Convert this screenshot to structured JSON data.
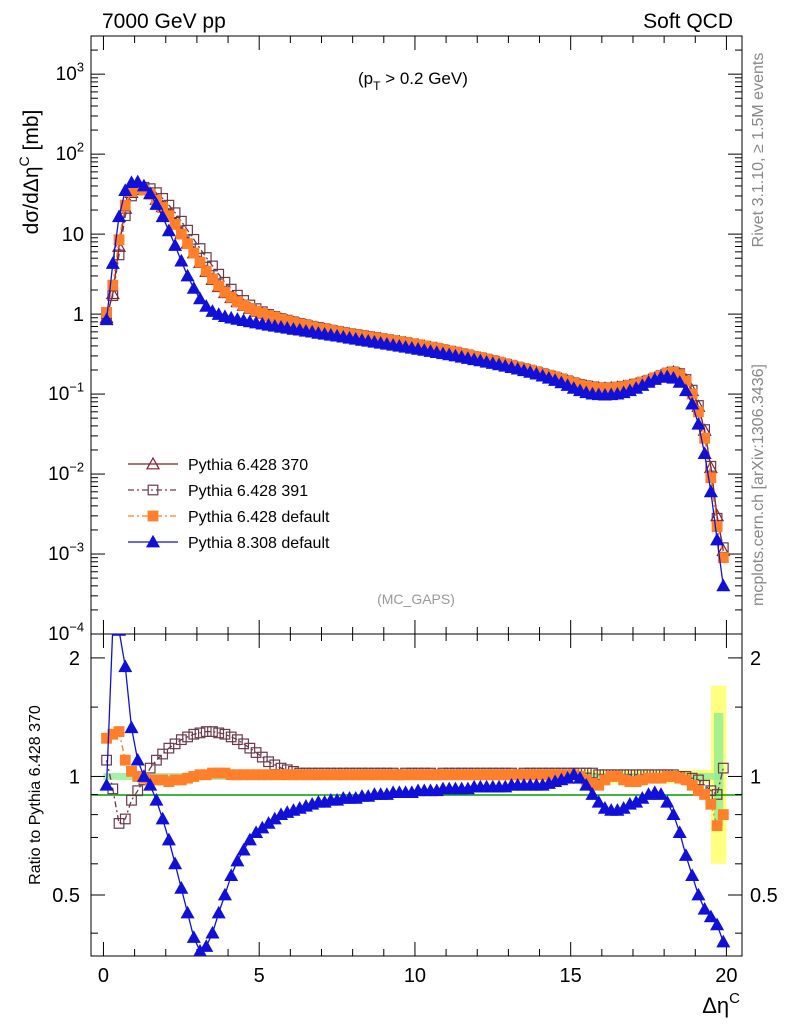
{
  "header": {
    "energy_label": "7000 GeV pp",
    "process_label": "Soft QCD",
    "cut_label": "(p_T > 0.2 GeV)",
    "analysis_label": "(MC_GAPS)"
  },
  "side_labels": {
    "rivet": "Rivet 3.1.10, ≥ 1.5M events",
    "mcplots": "mcplots.cern.ch [arXiv:1306.3436]"
  },
  "axes": {
    "main_ylabel": "dσ/dΔη^C [mb]",
    "ratio_ylabel": "Ratio to Pythia 6.428 370",
    "xlabel": "Δη^C",
    "xticks": [
      "0",
      "5",
      "10",
      "15",
      "20"
    ],
    "main_yticks": [
      "10^-4",
      "10^-3",
      "10^-2",
      "10^-1",
      "1",
      "10",
      "10^2",
      "10^3"
    ],
    "ratio_yticks": [
      "0.5",
      "1",
      "2"
    ]
  },
  "colors": {
    "pythia6_370": "#8b1a2b",
    "pythia6_391": "#6b3a4a",
    "pythia6_default": "#ff7f2a",
    "pythia8_default": "#1010d8",
    "band_green": "#90ee90",
    "band_yellow": "#ffff80"
  },
  "chart_data": [
    {
      "type": "line",
      "panel": "main",
      "title": "",
      "xlabel": "Δη^C",
      "ylabel": "dσ/dΔη^C [mb]",
      "xlim": [
        -0.4,
        20.5
      ],
      "ylim": [
        0.0001,
        3000
      ],
      "yscale": "log",
      "legend_position": "bottom-left",
      "x": [
        0.1,
        0.3,
        0.5,
        0.7,
        0.9,
        1.1,
        1.3,
        1.5,
        1.7,
        1.9,
        2.1,
        2.3,
        2.5,
        2.7,
        2.9,
        3.1,
        3.3,
        3.5,
        3.7,
        3.9,
        4.1,
        4.3,
        4.5,
        4.7,
        4.9,
        5.1,
        5.3,
        5.5,
        5.7,
        5.9,
        6.1,
        6.3,
        6.5,
        6.7,
        6.9,
        7.1,
        7.3,
        7.5,
        7.7,
        7.9,
        8.1,
        8.3,
        8.5,
        8.7,
        8.9,
        9.1,
        9.3,
        9.5,
        9.7,
        9.9,
        10.1,
        10.3,
        10.5,
        10.7,
        10.9,
        11.1,
        11.3,
        11.5,
        11.7,
        11.9,
        12.1,
        12.3,
        12.5,
        12.7,
        12.9,
        13.1,
        13.3,
        13.5,
        13.7,
        13.9,
        14.1,
        14.3,
        14.5,
        14.7,
        14.9,
        15.1,
        15.3,
        15.5,
        15.7,
        15.9,
        16.1,
        16.3,
        16.5,
        16.7,
        16.9,
        17.1,
        17.3,
        17.5,
        17.7,
        17.9,
        18.1,
        18.3,
        18.5,
        18.7,
        18.9,
        19.1,
        19.3,
        19.5,
        19.7,
        19.9
      ],
      "series": [
        {
          "name": "Pythia 6.428 370",
          "values": [
            0.9,
            1.8,
            7.0,
            21.0,
            33.0,
            37.0,
            36.0,
            32.0,
            27.0,
            22.0,
            17.5,
            13.5,
            10.2,
            7.7,
            5.8,
            4.4,
            3.4,
            2.7,
            2.2,
            1.85,
            1.6,
            1.42,
            1.28,
            1.17,
            1.08,
            1.01,
            0.95,
            0.9,
            0.86,
            0.82,
            0.78,
            0.75,
            0.72,
            0.69,
            0.66,
            0.64,
            0.62,
            0.6,
            0.58,
            0.56,
            0.545,
            0.53,
            0.515,
            0.5,
            0.49,
            0.475,
            0.46,
            0.45,
            0.435,
            0.42,
            0.41,
            0.395,
            0.38,
            0.37,
            0.355,
            0.34,
            0.33,
            0.315,
            0.305,
            0.29,
            0.28,
            0.27,
            0.258,
            0.247,
            0.235,
            0.225,
            0.215,
            0.205,
            0.196,
            0.187,
            0.178,
            0.17,
            0.162,
            0.153,
            0.145,
            0.137,
            0.13,
            0.125,
            0.121,
            0.119,
            0.118,
            0.119,
            0.121,
            0.124,
            0.128,
            0.133,
            0.14,
            0.148,
            0.158,
            0.17,
            0.182,
            0.188,
            0.178,
            0.15,
            0.11,
            0.07,
            0.035,
            0.012,
            0.003,
            0.0011
          ]
        },
        {
          "name": "Pythia 6.428 391",
          "values": [
            1.0,
            1.7,
            5.5,
            17.0,
            30.0,
            37.0,
            38.5,
            37.0,
            33.0,
            28.0,
            23.0,
            18.5,
            14.5,
            11.2,
            8.6,
            6.6,
            5.1,
            4.0,
            3.15,
            2.5,
            2.05,
            1.72,
            1.48,
            1.3,
            1.17,
            1.07,
            0.99,
            0.93,
            0.88,
            0.84,
            0.8,
            0.765,
            0.735,
            0.705,
            0.68,
            0.655,
            0.63,
            0.61,
            0.59,
            0.57,
            0.555,
            0.54,
            0.525,
            0.51,
            0.495,
            0.48,
            0.465,
            0.45,
            0.44,
            0.425,
            0.41,
            0.4,
            0.385,
            0.37,
            0.36,
            0.345,
            0.335,
            0.32,
            0.31,
            0.295,
            0.285,
            0.274,
            0.262,
            0.25,
            0.239,
            0.229,
            0.218,
            0.208,
            0.199,
            0.19,
            0.181,
            0.172,
            0.164,
            0.155,
            0.147,
            0.139,
            0.132,
            0.127,
            0.123,
            0.12,
            0.119,
            0.12,
            0.122,
            0.125,
            0.129,
            0.134,
            0.141,
            0.149,
            0.159,
            0.171,
            0.183,
            0.189,
            0.18,
            0.152,
            0.112,
            0.072,
            0.036,
            0.0125,
            0.0028,
            0.0012
          ]
        },
        {
          "name": "Pythia 6.428 default",
          "values": [
            1.05,
            2.3,
            8.5,
            23.0,
            34.0,
            37.0,
            35.5,
            31.5,
            26.5,
            21.5,
            17.0,
            13.2,
            10.0,
            7.6,
            5.8,
            4.45,
            3.45,
            2.75,
            2.25,
            1.88,
            1.62,
            1.43,
            1.29,
            1.18,
            1.09,
            1.02,
            0.96,
            0.91,
            0.865,
            0.825,
            0.785,
            0.755,
            0.725,
            0.695,
            0.665,
            0.645,
            0.625,
            0.605,
            0.585,
            0.565,
            0.55,
            0.535,
            0.52,
            0.505,
            0.495,
            0.48,
            0.465,
            0.455,
            0.44,
            0.425,
            0.415,
            0.4,
            0.385,
            0.375,
            0.36,
            0.345,
            0.335,
            0.32,
            0.31,
            0.295,
            0.285,
            0.274,
            0.262,
            0.25,
            0.239,
            0.228,
            0.218,
            0.208,
            0.198,
            0.189,
            0.18,
            0.171,
            0.163,
            0.154,
            0.146,
            0.138,
            0.13,
            0.125,
            0.121,
            0.119,
            0.118,
            0.119,
            0.121,
            0.124,
            0.128,
            0.133,
            0.14,
            0.148,
            0.158,
            0.17,
            0.182,
            0.187,
            0.175,
            0.145,
            0.1,
            0.06,
            0.028,
            0.009,
            0.0022,
            0.0009
          ]
        },
        {
          "name": "Pythia 8.308 default",
          "values": [
            0.85,
            4.3,
            16.5,
            35.0,
            44.0,
            45.0,
            40.0,
            32.0,
            23.5,
            16.5,
            11.0,
            7.2,
            4.6,
            3.0,
            2.1,
            1.55,
            1.25,
            1.08,
            0.99,
            0.93,
            0.89,
            0.86,
            0.83,
            0.8,
            0.775,
            0.75,
            0.725,
            0.705,
            0.685,
            0.665,
            0.645,
            0.63,
            0.61,
            0.595,
            0.575,
            0.56,
            0.545,
            0.53,
            0.515,
            0.5,
            0.485,
            0.47,
            0.458,
            0.445,
            0.432,
            0.42,
            0.408,
            0.397,
            0.385,
            0.374,
            0.363,
            0.352,
            0.341,
            0.33,
            0.319,
            0.309,
            0.299,
            0.289,
            0.279,
            0.269,
            0.26,
            0.25,
            0.241,
            0.232,
            0.223,
            0.214,
            0.205,
            0.196,
            0.187,
            0.178,
            0.168,
            0.158,
            0.148,
            0.138,
            0.128,
            0.118,
            0.11,
            0.104,
            0.1,
            0.098,
            0.097,
            0.098,
            0.1,
            0.104,
            0.11,
            0.118,
            0.128,
            0.14,
            0.152,
            0.162,
            0.165,
            0.158,
            0.14,
            0.11,
            0.075,
            0.042,
            0.018,
            0.006,
            0.0015,
            0.0004
          ]
        }
      ]
    },
    {
      "type": "line",
      "panel": "ratio",
      "title": "",
      "xlabel": "Δη^C",
      "ylabel": "Ratio to Pythia 6.428 370",
      "xlim": [
        -0.4,
        20.5
      ],
      "ylim": [
        0.35,
        2.3
      ],
      "yscale": "log",
      "x": [
        0.1,
        0.3,
        0.5,
        0.7,
        0.9,
        1.1,
        1.3,
        1.5,
        1.7,
        1.9,
        2.1,
        2.3,
        2.5,
        2.7,
        2.9,
        3.1,
        3.3,
        3.5,
        3.7,
        3.9,
        4.1,
        4.3,
        4.5,
        4.7,
        4.9,
        5.1,
        5.3,
        5.5,
        5.7,
        5.9,
        6.1,
        6.3,
        6.5,
        6.7,
        6.9,
        7.1,
        7.3,
        7.5,
        7.7,
        7.9,
        8.1,
        8.3,
        8.5,
        8.7,
        8.9,
        9.1,
        9.3,
        9.5,
        9.7,
        9.9,
        10.1,
        10.3,
        10.5,
        10.7,
        10.9,
        11.1,
        11.3,
        11.5,
        11.7,
        11.9,
        12.1,
        12.3,
        12.5,
        12.7,
        12.9,
        13.1,
        13.3,
        13.5,
        13.7,
        13.9,
        14.1,
        14.3,
        14.5,
        14.7,
        14.9,
        15.1,
        15.3,
        15.5,
        15.7,
        15.9,
        16.1,
        16.3,
        16.5,
        16.7,
        16.9,
        17.1,
        17.3,
        17.5,
        17.7,
        17.9,
        18.1,
        18.3,
        18.5,
        18.7,
        18.9,
        19.1,
        19.3,
        19.5,
        19.7,
        19.9
      ],
      "series": [
        {
          "name": "Pythia 6.428 391",
          "values": [
            1.1,
            0.93,
            0.76,
            0.78,
            0.87,
            0.92,
            0.98,
            1.05,
            1.1,
            1.14,
            1.18,
            1.21,
            1.24,
            1.26,
            1.28,
            1.29,
            1.3,
            1.3,
            1.29,
            1.28,
            1.26,
            1.24,
            1.21,
            1.18,
            1.15,
            1.12,
            1.09,
            1.07,
            1.05,
            1.04,
            1.03,
            1.02,
            1.02,
            1.02,
            1.02,
            1.02,
            1.02,
            1.02,
            1.02,
            1.02,
            1.02,
            1.02,
            1.02,
            1.02,
            1.02,
            1.02,
            1.02,
            1.01,
            1.02,
            1.02,
            1.02,
            1.02,
            1.02,
            1.01,
            1.02,
            1.02,
            1.02,
            1.02,
            1.02,
            1.02,
            1.02,
            1.02,
            1.02,
            1.02,
            1.02,
            1.02,
            1.01,
            1.02,
            1.02,
            1.02,
            1.02,
            1.02,
            1.02,
            1.02,
            1.02,
            1.02,
            1.02,
            1.02,
            1.02,
            1.01,
            1.01,
            1.01,
            1.01,
            1.01,
            1.01,
            1.01,
            1.01,
            1.01,
            1.01,
            1.01,
            1.01,
            1.01,
            1.0,
            1.0,
            0.99,
            0.98,
            0.95,
            0.92,
            0.9,
            1.05
          ]
        },
        {
          "name": "Pythia 6.428 default",
          "values": [
            1.25,
            1.28,
            1.3,
            1.1,
            1.03,
            1.0,
            0.99,
            0.98,
            0.98,
            0.98,
            0.97,
            0.98,
            0.98,
            0.99,
            1.0,
            1.01,
            1.01,
            1.02,
            1.02,
            1.02,
            1.01,
            1.01,
            1.01,
            1.01,
            1.01,
            1.01,
            1.01,
            1.01,
            1.01,
            1.01,
            1.01,
            1.01,
            1.01,
            1.01,
            1.01,
            1.01,
            1.01,
            1.01,
            1.01,
            1.01,
            1.01,
            1.01,
            1.01,
            1.01,
            1.01,
            1.01,
            1.01,
            1.01,
            1.01,
            1.01,
            1.01,
            1.01,
            1.01,
            1.01,
            1.01,
            1.01,
            1.01,
            1.01,
            1.01,
            1.01,
            1.01,
            1.01,
            1.01,
            1.01,
            1.01,
            1.01,
            1.01,
            1.01,
            1.01,
            1.01,
            1.01,
            1.01,
            1.01,
            1.01,
            1.01,
            1.01,
            1.0,
            0.98,
            0.96,
            0.95,
            0.98,
            1.0,
            1.0,
            0.98,
            0.97,
            0.97,
            0.98,
            0.99,
            0.99,
            0.99,
            1.0,
            1.0,
            0.99,
            0.98,
            0.95,
            0.92,
            0.9,
            0.85,
            0.75,
            0.8
          ]
        },
        {
          "name": "Pythia 8.308 default",
          "values": [
            0.95,
            2.4,
            2.35,
            1.9,
            1.33,
            1.1,
            1.0,
            0.95,
            0.87,
            0.78,
            0.69,
            0.6,
            0.52,
            0.45,
            0.39,
            0.36,
            0.37,
            0.4,
            0.45,
            0.5,
            0.56,
            0.61,
            0.65,
            0.69,
            0.72,
            0.74,
            0.76,
            0.78,
            0.8,
            0.81,
            0.82,
            0.83,
            0.84,
            0.85,
            0.86,
            0.86,
            0.87,
            0.87,
            0.88,
            0.88,
            0.88,
            0.89,
            0.89,
            0.9,
            0.9,
            0.9,
            0.91,
            0.91,
            0.91,
            0.91,
            0.92,
            0.92,
            0.92,
            0.92,
            0.93,
            0.93,
            0.93,
            0.93,
            0.93,
            0.94,
            0.94,
            0.94,
            0.94,
            0.94,
            0.94,
            0.95,
            0.95,
            0.95,
            0.95,
            0.95,
            0.95,
            0.96,
            0.97,
            0.98,
            0.99,
            1.01,
            0.99,
            0.95,
            0.9,
            0.86,
            0.83,
            0.82,
            0.82,
            0.83,
            0.85,
            0.86,
            0.88,
            0.9,
            0.91,
            0.9,
            0.86,
            0.8,
            0.72,
            0.63,
            0.56,
            0.5,
            0.46,
            0.44,
            0.42,
            0.38
          ]
        }
      ]
    }
  ]
}
